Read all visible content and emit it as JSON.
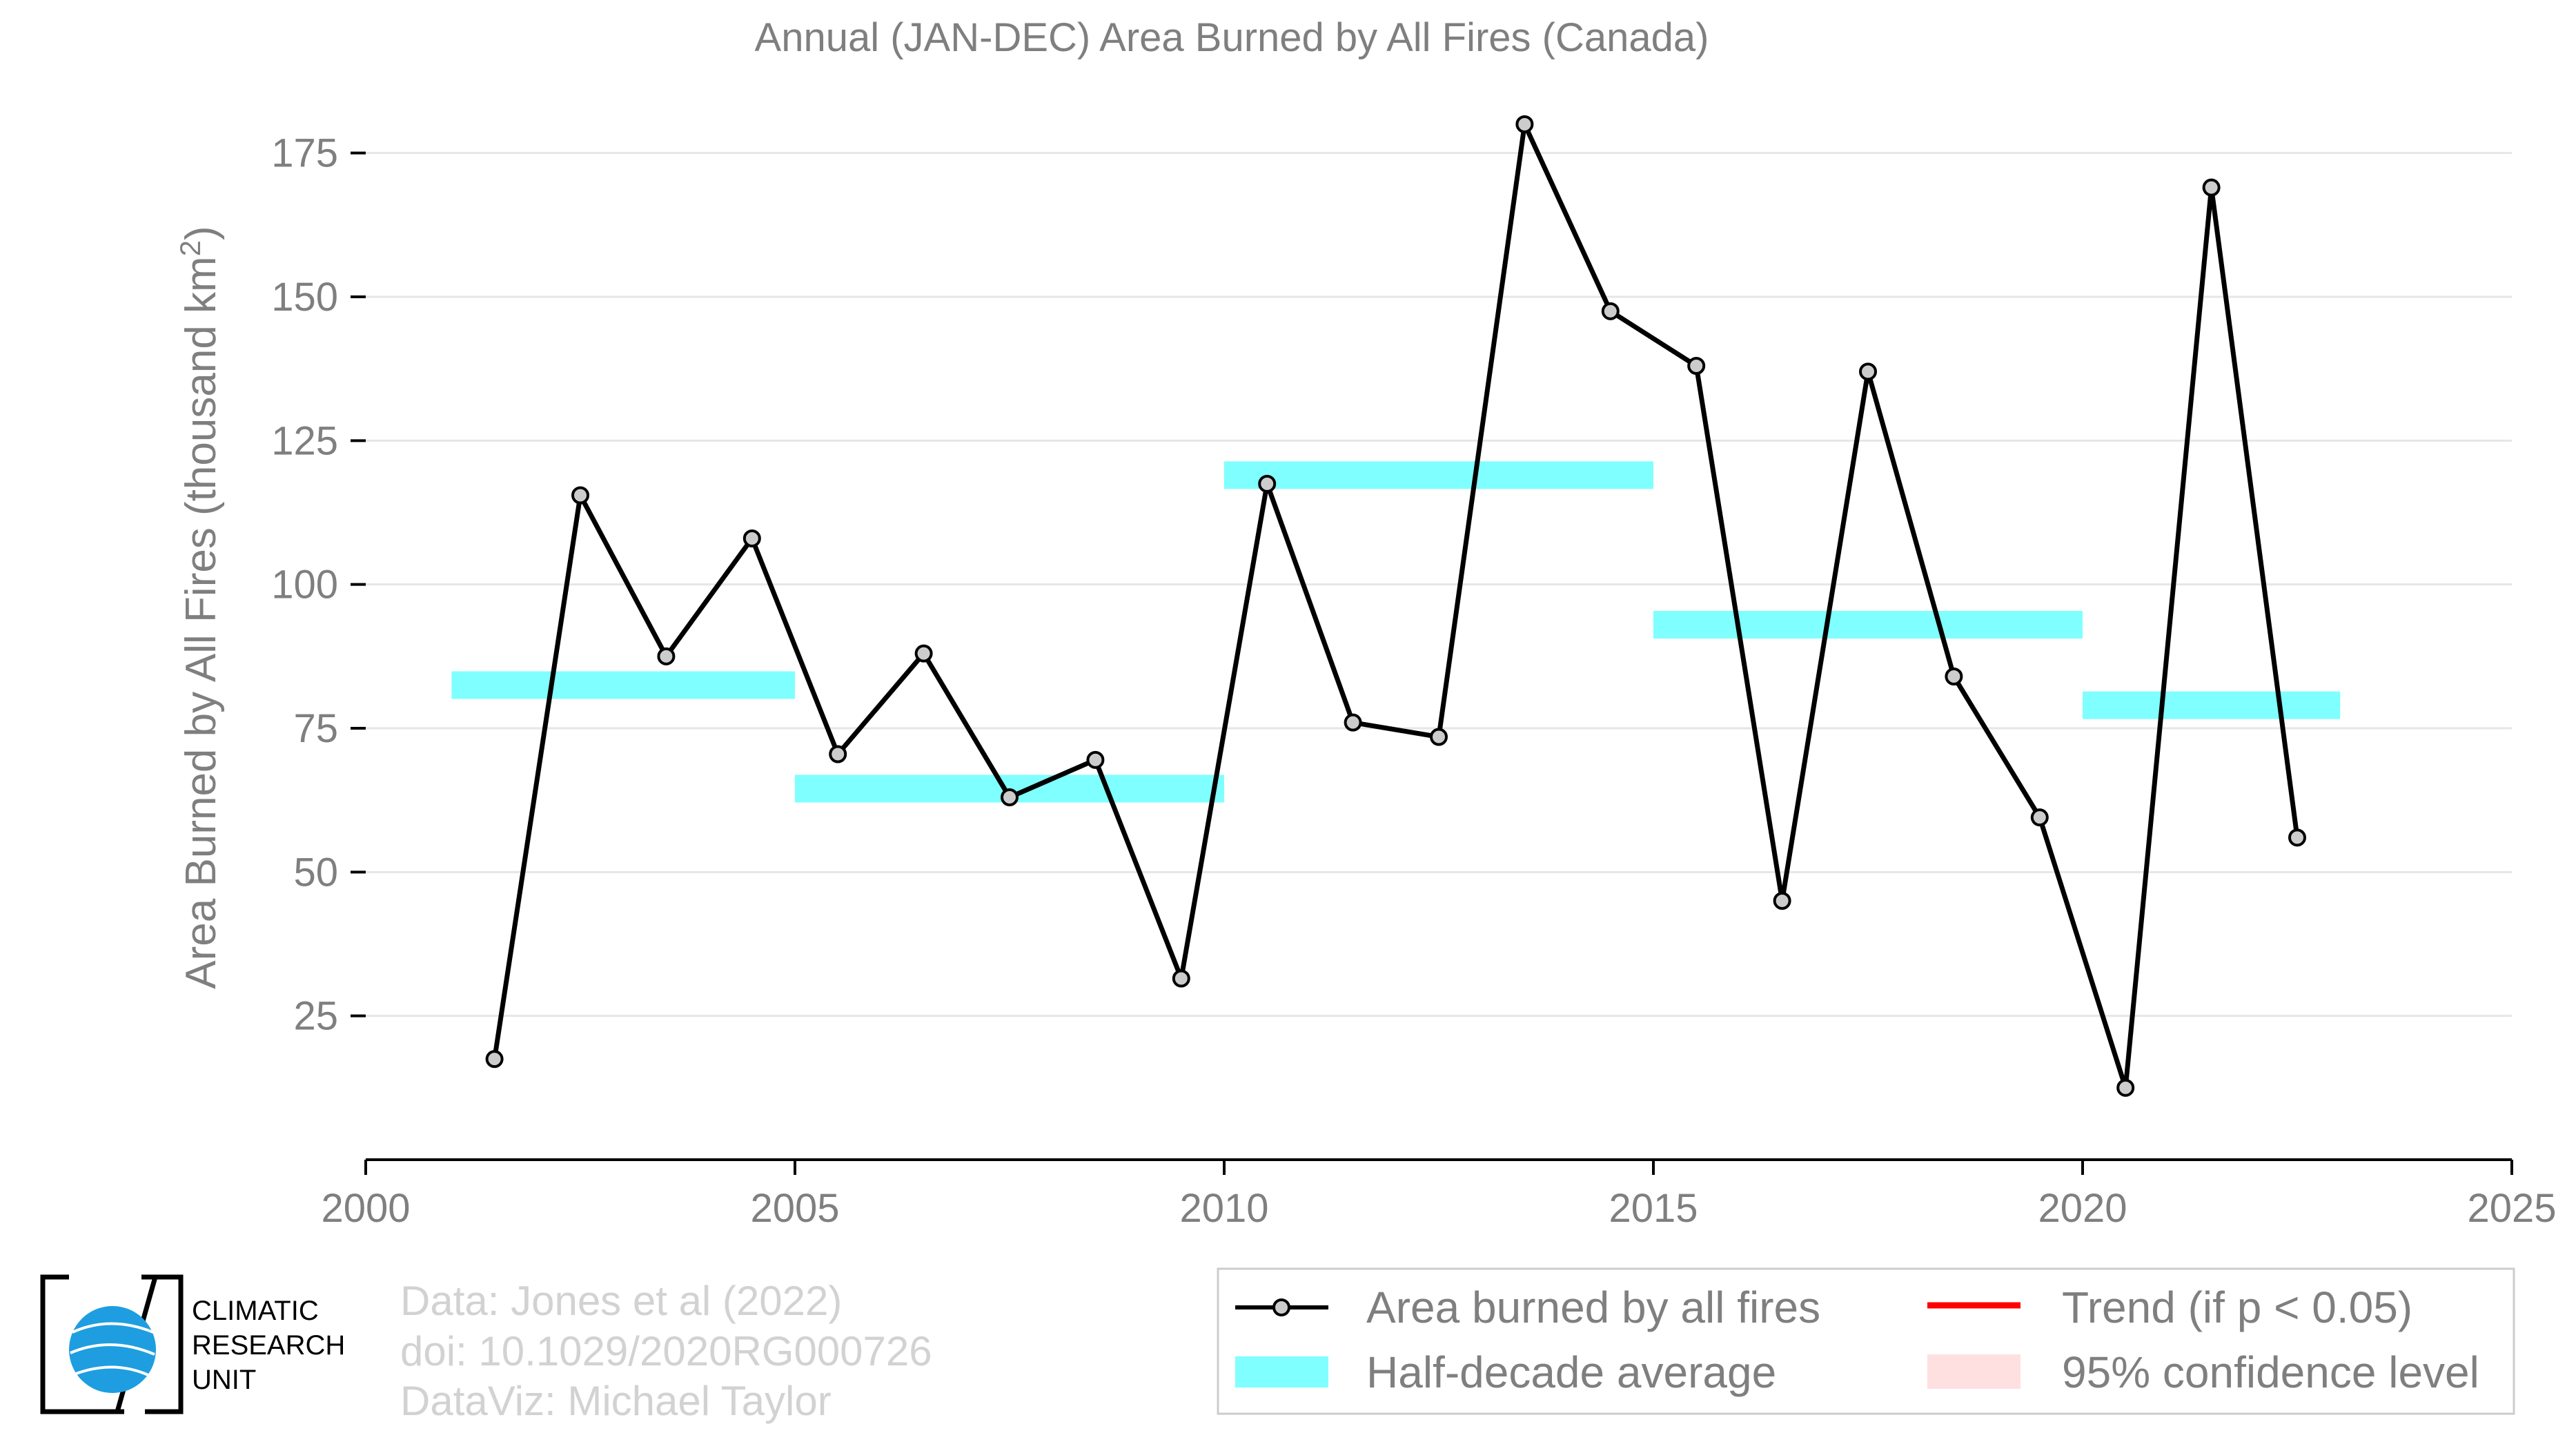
{
  "chart_data": {
    "type": "line",
    "title": "Annual (JAN-DEC) Area Burned by All Fires (Canada)",
    "ylabel_main": "Area Burned by All Fires (thousand km",
    "ylabel_sup": "2",
    "ylabel_end": ")",
    "xlim": [
      2000,
      2025
    ],
    "ylim": [
      0,
      180
    ],
    "xticks": [
      "2000",
      "2005",
      "2010",
      "2015",
      "2020",
      "2025"
    ],
    "yticks": [
      "25",
      "50",
      "75",
      "100",
      "125",
      "150",
      "175"
    ],
    "grid": true,
    "series": [
      {
        "name": "Area burned by all fires",
        "color": "#000000",
        "x": [
          2001.5,
          2002.5,
          2003.5,
          2004.5,
          2005.5,
          2006.5,
          2007.5,
          2008.5,
          2009.5,
          2010.5,
          2011.5,
          2012.5,
          2013.5,
          2014.5,
          2015.5,
          2016.5,
          2017.5,
          2018.5,
          2019.5,
          2020.5,
          2021.5,
          2022.5
        ],
        "values": [
          17.5,
          115.5,
          87.5,
          108,
          70.5,
          88,
          63,
          69.5,
          31.5,
          117.5,
          76,
          73.5,
          180,
          147.5,
          138,
          45,
          137,
          84,
          59.5,
          12.5,
          169,
          56
        ]
      }
    ],
    "half_decade_average": {
      "name": "Half-decade average",
      "color": "#7fffff",
      "segments": [
        {
          "x_start": 2001,
          "x_end": 2005,
          "value": 82.5
        },
        {
          "x_start": 2005,
          "x_end": 2010,
          "value": 64.5
        },
        {
          "x_start": 2010,
          "x_end": 2015,
          "value": 119
        },
        {
          "x_start": 2015,
          "x_end": 2020,
          "value": 93
        },
        {
          "x_start": 2020,
          "x_end": 2023,
          "value": 79
        }
      ]
    },
    "legend": {
      "placement": "bottom-right",
      "items": [
        {
          "label": "Area burned by all fires",
          "kind": "line-marker",
          "color": "#000000"
        },
        {
          "label": "Trend (if p < 0.05)",
          "kind": "line",
          "color": "#ff0000"
        },
        {
          "label": "Half-decade average",
          "kind": "band",
          "color": "#7fffff"
        },
        {
          "label": "95% confidence level",
          "kind": "band",
          "color": "#ffe0e0"
        }
      ]
    }
  },
  "credits": {
    "line1": "Data: Jones et al (2022)",
    "line2": "doi: 10.1029/2020RG000726",
    "line3": "DataViz: Michael Taylor"
  },
  "logo": {
    "line1": "CLIMATIC",
    "line2": "RESEARCH",
    "line3": "UNIT",
    "icon": "globe-icon",
    "color": "#1e9ee0"
  }
}
